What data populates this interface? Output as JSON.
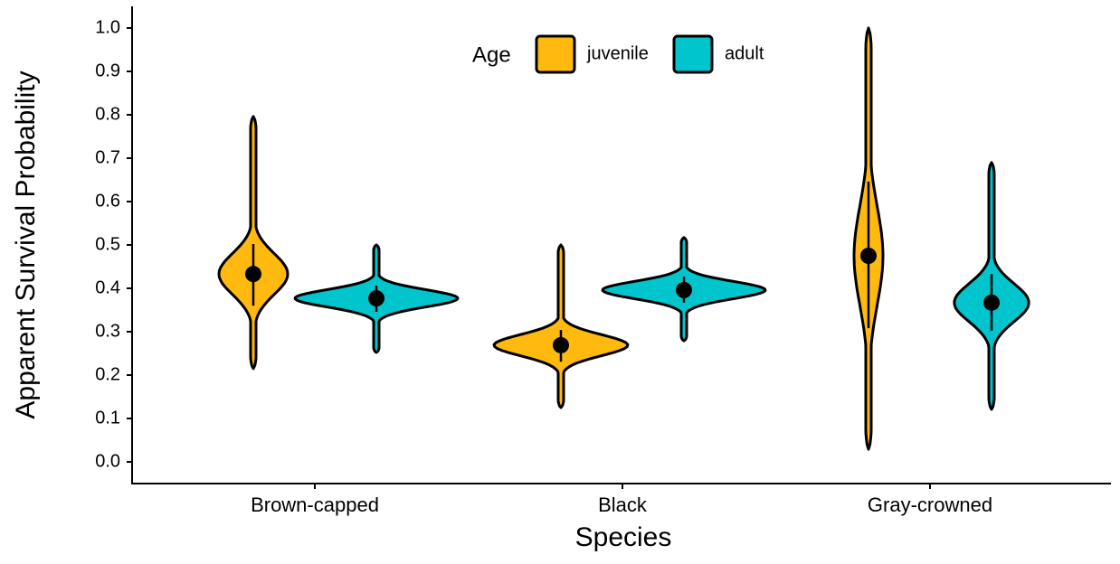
{
  "chart_data": {
    "type": "violin",
    "x_label": "Species",
    "y_label": "Apparent Survival Probability",
    "categories": [
      "Brown-capped",
      "Black",
      "Gray-crowned"
    ],
    "legend_title": "Age",
    "legend_position": "top",
    "ylim": [
      -0.05,
      1.05
    ],
    "yticks": [
      {
        "value": 0,
        "label": "0.0"
      },
      0.1,
      0.2,
      0.3,
      0.4,
      0.5,
      0.6,
      0.7,
      0.8,
      0.9,
      {
        "value": 1,
        "label": "1.0"
      }
    ],
    "series": [
      {
        "name": "juvenile",
        "color": "#FFB90F",
        "mean": [
          0.433,
          0.269,
          0.475
        ],
        "lower": [
          0.36,
          0.231,
          0.308
        ],
        "upper": [
          0.502,
          0.304,
          0.646
        ],
        "min": [
          0.215,
          0.125,
          0.029
        ],
        "max": [
          0.796,
          0.5,
          1.0
        ]
      },
      {
        "name": "adult",
        "color": "#00C5CD",
        "mean": [
          0.377,
          0.396,
          0.367
        ],
        "lower": [
          0.346,
          0.367,
          0.302
        ],
        "upper": [
          0.406,
          0.427,
          0.433
        ],
        "min": [
          0.252,
          0.279,
          0.121
        ],
        "max": [
          0.5,
          0.517,
          0.69
        ]
      }
    ]
  }
}
